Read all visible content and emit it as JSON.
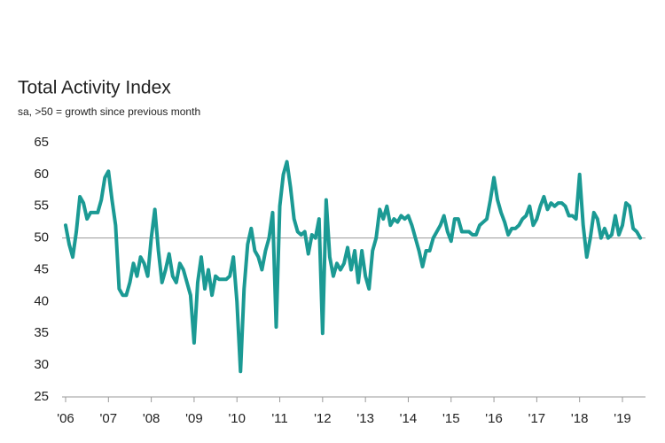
{
  "chart_data": {
    "type": "line",
    "title": "Total Activity Index",
    "subtitle": "sa, >50 = growth since previous month",
    "categories": [
      "'06",
      null,
      null,
      null,
      null,
      null,
      null,
      null,
      null,
      null,
      null,
      null,
      "'07",
      null,
      null,
      null,
      null,
      null,
      null,
      null,
      null,
      null,
      null,
      null,
      "'08",
      null,
      null,
      null,
      null,
      null,
      null,
      null,
      null,
      null,
      null,
      null,
      "'09",
      null,
      null,
      null,
      null,
      null,
      null,
      null,
      null,
      null,
      null,
      null,
      "'10",
      null,
      null,
      null,
      null,
      null,
      null,
      null,
      null,
      null,
      null,
      null,
      "'11",
      null,
      null,
      null,
      null,
      null,
      null,
      null,
      null,
      null,
      null,
      null,
      "'12",
      null,
      null,
      null,
      null,
      null,
      null,
      null,
      null,
      null,
      null,
      null,
      "'13",
      null,
      null,
      null,
      null,
      null,
      null,
      null,
      null,
      null,
      null,
      null,
      "'14",
      null,
      null,
      null,
      null,
      null,
      null,
      null,
      null,
      null,
      null,
      null,
      "'15",
      null,
      null,
      null,
      null,
      null,
      null,
      null,
      null,
      null,
      null,
      null,
      "'16",
      null,
      null,
      null,
      null,
      null,
      null,
      null,
      null,
      null,
      null,
      null,
      "'17",
      null,
      null,
      null,
      null,
      null,
      null,
      null,
      null,
      null,
      null,
      null,
      "'18",
      null,
      null,
      null,
      null,
      null,
      null,
      null,
      null,
      null,
      null,
      null,
      "'19",
      null,
      null,
      null,
      null,
      null
    ],
    "series": [
      {
        "name": "Total Activity Index",
        "color": "#1b9a94",
        "values": [
          52,
          49,
          47,
          51,
          56.5,
          55.5,
          53,
          54,
          54,
          54,
          56,
          59.5,
          60.5,
          56,
          52,
          42,
          41,
          41,
          43,
          46,
          44,
          47,
          46,
          44,
          50,
          54.5,
          48,
          43,
          45,
          47.5,
          44,
          43,
          46,
          45,
          43,
          41,
          33.5,
          43,
          47,
          42,
          45,
          41,
          44,
          43.5,
          43.5,
          43.5,
          44,
          47,
          40,
          29,
          42,
          49,
          51.5,
          48,
          47,
          45,
          48,
          50,
          54,
          36,
          55,
          60,
          62,
          58,
          53,
          51,
          50.5,
          51,
          47.5,
          50.5,
          50,
          53,
          35,
          56,
          47,
          44,
          46,
          45,
          46,
          48.5,
          45,
          48,
          43,
          48,
          44,
          42,
          48,
          50,
          54.5,
          53,
          55,
          52,
          53,
          52.5,
          53.5,
          53,
          53.5,
          52,
          50,
          48,
          45.5,
          48,
          48,
          50,
          51,
          52,
          53.5,
          51,
          49.5,
          53,
          53,
          51,
          51,
          51,
          50.5,
          50.5,
          52,
          52.5,
          53,
          56,
          59.5,
          56,
          54,
          52.5,
          50.5,
          51.5,
          51.5,
          52,
          53,
          53.5,
          55,
          52,
          53,
          55,
          56.5,
          54.5,
          55.5,
          55,
          55.5,
          55.5,
          55,
          53.5,
          53.5,
          53,
          60,
          52,
          47,
          50,
          54,
          53,
          50,
          51.5,
          50,
          50.5,
          53.5,
          50.5,
          52,
          55.5,
          55,
          51.5,
          51,
          50
        ]
      }
    ],
    "ylim": [
      25,
      65
    ],
    "yticks": [
      25,
      30,
      35,
      40,
      45,
      50,
      55,
      60,
      65
    ],
    "reference_line": 50,
    "grid": false
  }
}
